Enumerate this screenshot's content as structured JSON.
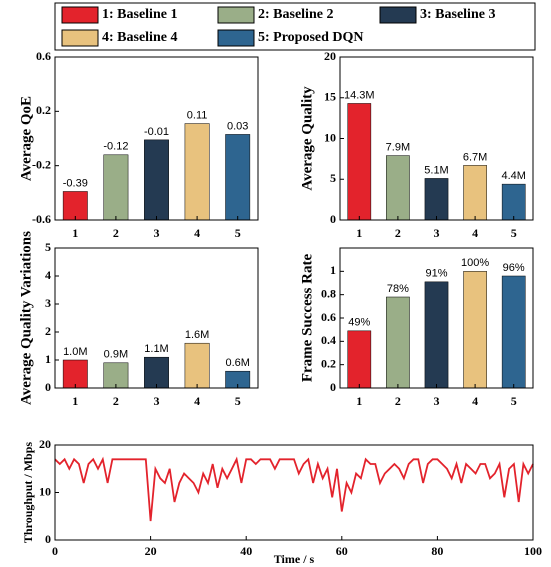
{
  "chart_data": [
    {
      "type": "bar",
      "ylabel": "Average QoE",
      "categories": [
        "1",
        "2",
        "3",
        "4",
        "5"
      ],
      "values": [
        -0.39,
        -0.12,
        -0.01,
        0.11,
        0.03
      ],
      "colors": [
        "#e3232c",
        "#9aae88",
        "#243a52",
        "#e8c27e",
        "#2e6590"
      ],
      "ylim": [
        -0.6,
        0.6
      ],
      "yticks": [
        -0.6,
        -0.2,
        0.2,
        0.6
      ]
    },
    {
      "type": "bar",
      "ylabel": "Average Quality",
      "categories": [
        "1",
        "2",
        "3",
        "4",
        "5"
      ],
      "values": [
        14.3,
        7.9,
        5.1,
        6.7,
        4.4
      ],
      "value_labels": [
        "14.3M",
        "7.9M",
        "5.1M",
        "6.7M",
        "4.4M"
      ],
      "colors": [
        "#e3232c",
        "#9aae88",
        "#243a52",
        "#e8c27e",
        "#2e6590"
      ],
      "ylim": [
        0,
        20
      ],
      "yticks": [
        0,
        5,
        10,
        15,
        20
      ]
    },
    {
      "type": "bar",
      "ylabel": "Average Quality Variations",
      "categories": [
        "1",
        "2",
        "3",
        "4",
        "5"
      ],
      "values": [
        1.0,
        0.9,
        1.1,
        1.6,
        0.6
      ],
      "value_labels": [
        "1.0M",
        "0.9M",
        "1.1M",
        "1.6M",
        "0.6M"
      ],
      "colors": [
        "#e3232c",
        "#9aae88",
        "#243a52",
        "#e8c27e",
        "#2e6590"
      ],
      "ylim": [
        0,
        5
      ],
      "yticks": [
        0,
        1,
        2,
        3,
        4,
        5
      ]
    },
    {
      "type": "bar",
      "ylabel": "Frame Success Rate",
      "categories": [
        "1",
        "2",
        "3",
        "4",
        "5"
      ],
      "values": [
        0.49,
        0.78,
        0.91,
        1.0,
        0.96
      ],
      "value_labels": [
        "49%",
        "78%",
        "91%",
        "100%",
        "96%"
      ],
      "colors": [
        "#e3232c",
        "#9aae88",
        "#243a52",
        "#e8c27e",
        "#2e6590"
      ],
      "ylim": [
        0,
        1.2
      ],
      "yticks": [
        0,
        0.2,
        0.4,
        0.6,
        0.8,
        1
      ]
    },
    {
      "type": "line",
      "xlabel": "Time / s",
      "ylabel": "Throughput / Mbps",
      "color": "#e3232c",
      "x": [
        0,
        1,
        2,
        3,
        4,
        5,
        6,
        7,
        8,
        9,
        10,
        11,
        12,
        13,
        14,
        15,
        16,
        17,
        18,
        19,
        20,
        21,
        22,
        23,
        24,
        25,
        26,
        27,
        28,
        29,
        30,
        31,
        32,
        33,
        34,
        35,
        36,
        37,
        38,
        39,
        40,
        41,
        42,
        43,
        44,
        45,
        46,
        47,
        48,
        49,
        50,
        51,
        52,
        53,
        54,
        55,
        56,
        57,
        58,
        59,
        60,
        61,
        62,
        63,
        64,
        65,
        66,
        67,
        68,
        69,
        70,
        71,
        72,
        73,
        74,
        75,
        76,
        77,
        78,
        79,
        80,
        81,
        82,
        83,
        84,
        85,
        86,
        87,
        88,
        89,
        90,
        91,
        92,
        93,
        94,
        95,
        96,
        97,
        98,
        99,
        100
      ],
      "values": [
        17,
        16,
        17,
        15,
        17,
        16,
        12,
        16,
        17,
        15,
        17,
        12,
        17,
        17,
        17,
        17,
        17,
        17,
        17,
        17,
        4,
        15,
        13,
        12,
        15,
        8,
        12,
        14,
        13,
        12,
        10,
        14,
        12,
        16,
        11,
        15,
        13,
        15,
        17,
        12,
        17,
        17,
        16,
        17,
        17,
        17,
        15,
        17,
        17,
        17,
        17,
        14,
        16,
        17,
        12,
        16,
        13,
        15,
        9,
        15,
        6,
        12,
        10,
        14,
        13,
        17,
        16,
        16,
        12,
        14,
        15,
        16,
        15,
        13,
        16,
        17,
        17,
        12,
        16,
        17,
        17,
        16,
        15,
        13,
        16,
        12,
        16,
        15,
        14,
        16,
        16,
        13,
        14,
        16,
        9,
        15,
        16,
        8,
        16,
        14,
        16
      ],
      "xlim": [
        0,
        100
      ],
      "xticks": [
        0,
        20,
        40,
        60,
        80,
        100
      ],
      "ylim": [
        0,
        20
      ],
      "yticks": [
        0,
        10,
        20
      ]
    }
  ],
  "legend": [
    {
      "label": "1: Baseline 1",
      "color": "#e3232c"
    },
    {
      "label": "2: Baseline 2",
      "color": "#9aae88"
    },
    {
      "label": "3: Baseline 3",
      "color": "#243a52"
    },
    {
      "label": "4: Baseline 4",
      "color": "#e8c27e"
    },
    {
      "label": "5: Proposed DQN",
      "color": "#2e6590"
    }
  ]
}
